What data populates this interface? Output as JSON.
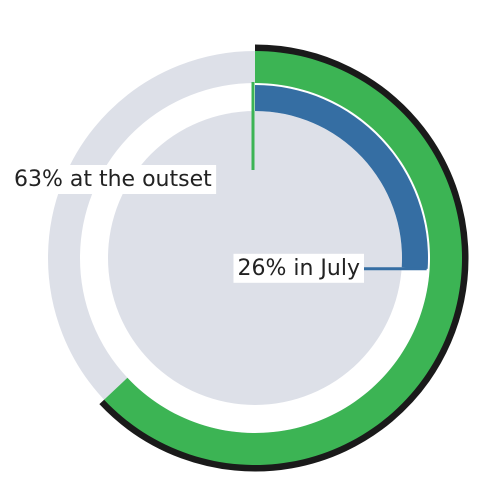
{
  "chart_data": {
    "type": "radial",
    "ylim": [
      0,
      100
    ],
    "series": [
      {
        "color": "#3cb454",
        "values": [
          63
        ],
        "value_labels": [
          "63% at the outset"
        ]
      },
      {
        "color": "#356ea3",
        "values": [
          26
        ],
        "value_labels": [
          "26% in July"
        ]
      }
    ]
  }
}
